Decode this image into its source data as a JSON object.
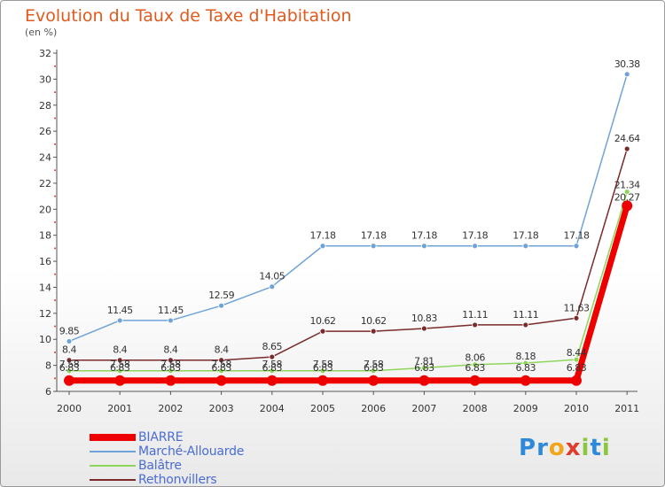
{
  "colors": {
    "title": "#e05a1e",
    "axis_text": "#333333",
    "legend_text": "#4a6cd6"
  },
  "chart_data": {
    "type": "line",
    "title": "Evolution du Taux de Taxe d'Habitation",
    "subtitle": "(en %)",
    "xlabel": "",
    "ylabel": "",
    "x": [
      "2000",
      "2001",
      "2002",
      "2003",
      "2004",
      "2005",
      "2006",
      "2007",
      "2008",
      "2009",
      "2010",
      "2011"
    ],
    "ylim": [
      6,
      32
    ],
    "yticks": [
      "6",
      "8",
      "10",
      "12",
      "14",
      "16",
      "18",
      "20",
      "22",
      "24",
      "26",
      "28",
      "30",
      "32"
    ],
    "grid": false,
    "legend": "bottom-left",
    "series": [
      {
        "name": "BIARRE",
        "color": "#ee0000",
        "values": [
          6.83,
          6.83,
          6.83,
          6.83,
          6.83,
          6.83,
          6.83,
          6.83,
          6.83,
          6.83,
          6.83,
          20.27
        ],
        "labels": [
          "6.83",
          "6.83",
          "6.83",
          "6.83",
          "6.83",
          "6.83",
          "6.83",
          "6.83",
          "6.83",
          "6.83",
          "6.83",
          "20.27"
        ]
      },
      {
        "name": "Marché-Allouarde",
        "color": "#6fa3d8",
        "values": [
          9.85,
          11.45,
          11.45,
          12.59,
          14.05,
          17.18,
          17.18,
          17.18,
          17.18,
          17.18,
          17.18,
          30.38
        ],
        "labels": [
          "9.85",
          "11.45",
          "11.45",
          "12.59",
          "14.05",
          "17.18",
          "17.18",
          "17.18",
          "17.18",
          "17.18",
          "17.18",
          "30.38"
        ]
      },
      {
        "name": "Balâtre",
        "color": "#8ed65a",
        "values": [
          7.58,
          7.58,
          7.58,
          7.58,
          7.58,
          7.58,
          7.58,
          7.81,
          8.06,
          8.18,
          8.44,
          21.34
        ],
        "labels": [
          "7.58",
          "7.58",
          "7.58",
          "7.58",
          "7.58",
          "7.58",
          "7.58",
          "7.81",
          "8.06",
          "8.18",
          "8.44",
          "21.34"
        ]
      },
      {
        "name": "Rethonvillers",
        "color": "#7a2a2a",
        "values": [
          8.4,
          8.4,
          8.4,
          8.4,
          8.65,
          10.62,
          10.62,
          10.83,
          11.11,
          11.11,
          11.63,
          24.64
        ],
        "labels": [
          "8.4",
          "8.4",
          "8.4",
          "8.4",
          "8.65",
          "10.62",
          "10.62",
          "10.83",
          "11.11",
          "11.11",
          "11.63",
          "24.64"
        ]
      }
    ]
  },
  "logo": {
    "letters": [
      "P",
      "r",
      "o",
      "x",
      "i",
      "t",
      "i"
    ],
    "colors": [
      "#2e8ad8",
      "#2e8ad8",
      "#f2a51a",
      "#e03c2c",
      "#8cc63f",
      "#2e8ad8",
      "#8cc63f"
    ]
  }
}
